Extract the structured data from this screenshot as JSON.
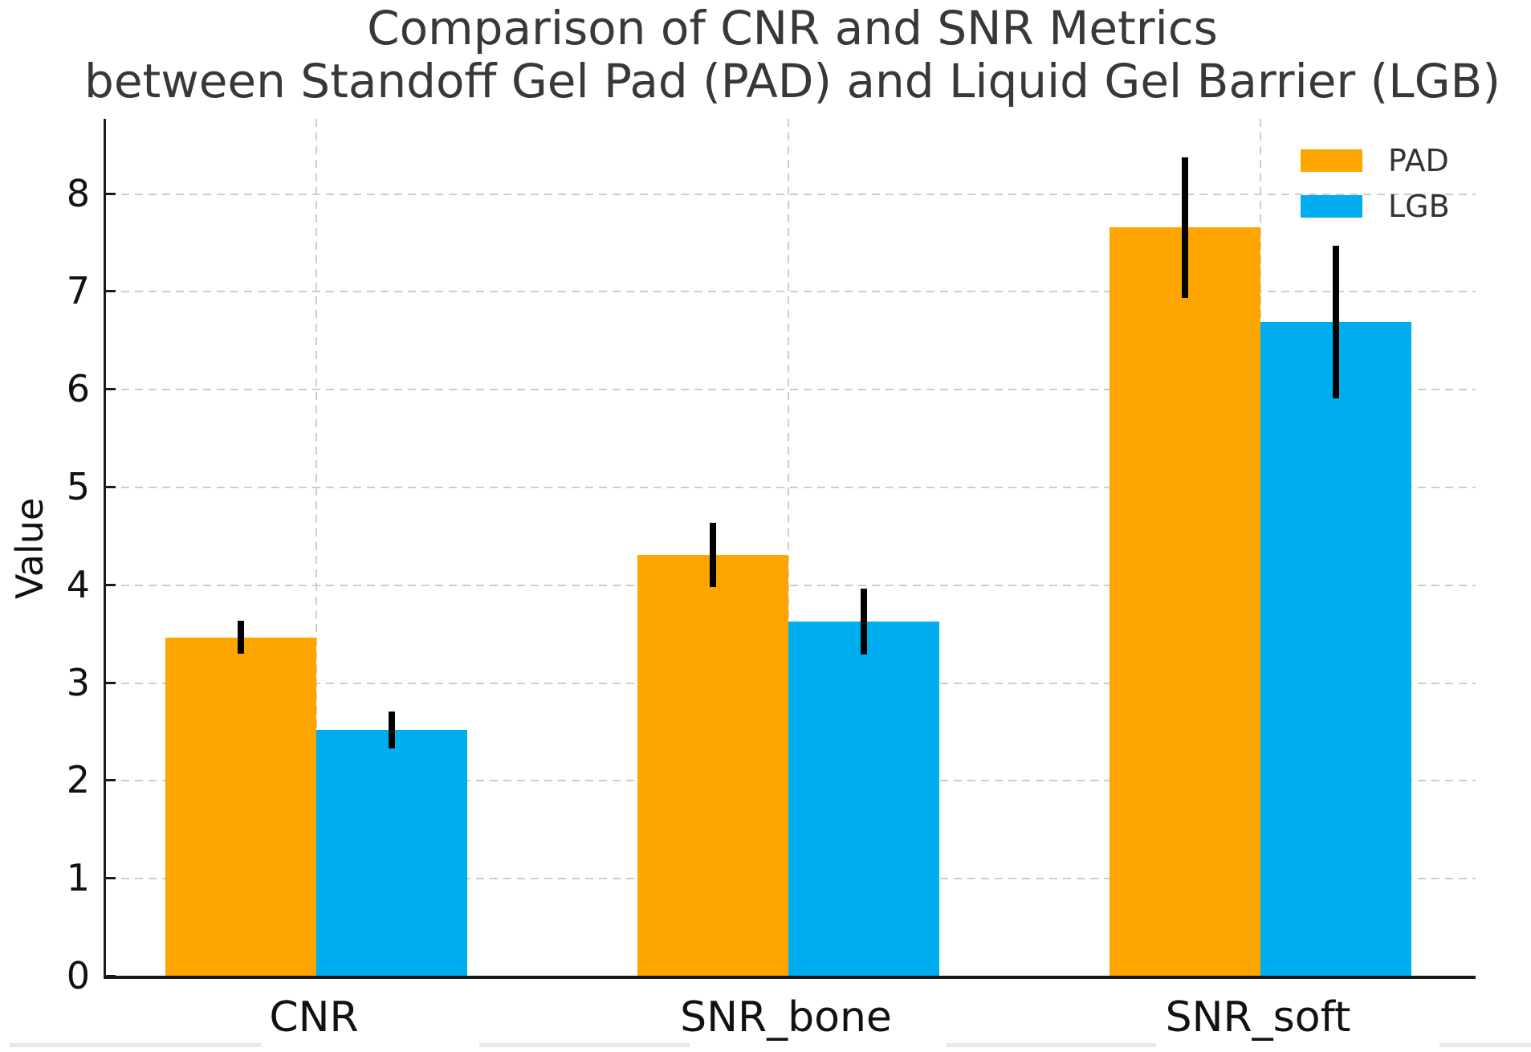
{
  "figure": {
    "title_line1": "Comparison of CNR and SNR Metrics",
    "title_line2": "between Standoff Gel Pad (PAD) and Liquid Gel Barrier (LGB)"
  },
  "chart_data": {
    "type": "bar",
    "title": "Comparison of CNR and SNR Metrics\nbetween Standoff Gel Pad (PAD) and Liquid Gel Barrier (LGB)",
    "ylabel": "Value",
    "xlabel": "",
    "categories": [
      "CNR",
      "SNR_bone",
      "SNR_soft"
    ],
    "series": [
      {
        "name": "PAD",
        "color": "#FFA500",
        "values": [
          3.46,
          4.3,
          7.65
        ],
        "errors": [
          0.17,
          0.33,
          0.72
        ]
      },
      {
        "name": "LGB",
        "color": "#00AEEF",
        "values": [
          2.51,
          3.62,
          6.68
        ],
        "errors": [
          0.19,
          0.34,
          0.78
        ]
      }
    ],
    "yticks": [
      0,
      1,
      2,
      3,
      4,
      5,
      6,
      7,
      8
    ],
    "ylim": [
      0,
      8.79
    ],
    "grid": {
      "style": "dashed",
      "color": "#cdcdcd",
      "horizontal": true,
      "vertical": true
    },
    "error_bar_color": "#000000",
    "legend": {
      "position": "upper right",
      "entries": [
        "PAD",
        "LGB"
      ]
    }
  },
  "colors": {
    "background": "#ffffff",
    "axis": "#1a1a1a",
    "title_text": "#383838",
    "tick_text": "#111111",
    "legend_text": "#333333",
    "pad_bar": "#FFA500",
    "lgb_bar": "#00AEEF"
  }
}
